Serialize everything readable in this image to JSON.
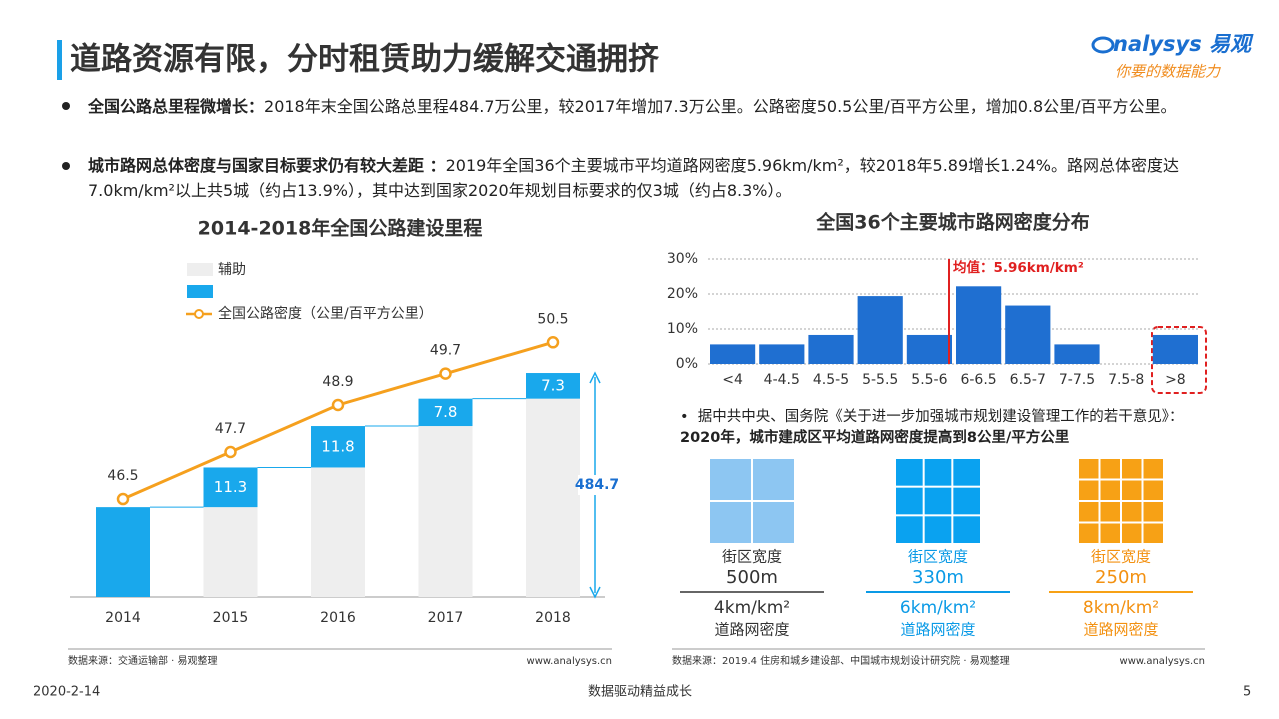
{
  "header": {
    "title": "道路资源有限，分时租赁助力缓解交通拥挤",
    "logo_brand": "nalysys 易观",
    "logo_slogan": "你要的数据能力"
  },
  "bullets": [
    {
      "lead": "全国公路总里程微增长：",
      "text": "2018年末全国公路总里程484.7万公里，较2017年增加7.3万公里。公路密度50.5公里/百平方公里，增加0.8公里/百平方公里。"
    },
    {
      "lead": "城市路网总体密度与国家目标要求仍有较大差距 ：",
      "text": "2019年全国36个主要城市平均道路网密度5.96km/km²，较2018年5.89增长1.24%。路网总体密度达7.0km/km²以上共5城（约占13.9%），其中达到国家2020年规划目标要求的仅3城（约占8.3%）。"
    }
  ],
  "chart_data": [
    {
      "type": "bar",
      "stacked": true,
      "title": "2014-2018年全国公路建设里程",
      "categories": [
        "2014",
        "2015",
        "2016",
        "2017",
        "2018"
      ],
      "series": [
        {
          "name": "辅助",
          "color": "#eeeeee",
          "values": [
            0,
            25.6,
            36.9,
            48.7,
            56.5
          ]
        },
        {
          "color": "#19a8ec",
          "values": [
            25.6,
            11.3,
            11.8,
            7.8,
            7.3
          ],
          "value_labels": [
            null,
            "11.3",
            "11.8",
            "7.8",
            "7.3"
          ]
        },
        {
          "name": "全国公路密度（公里/百平方公里）",
          "type": "line",
          "axis": "y2",
          "color": "#f5a01e",
          "values": [
            46.5,
            47.7,
            48.9,
            49.7,
            50.5
          ]
        }
      ],
      "ylim": [
        0,
        96
      ],
      "y2lim": [
        44,
        52.6
      ],
      "annotation": "484.7",
      "source": "数据来源：交通运输部 · 易观整理",
      "site": "www.analysys.cn"
    },
    {
      "type": "bar",
      "title": "全国36个主要城市路网密度分布",
      "categories": [
        "<4",
        "4-4.5",
        "4.5-5",
        "5-5.5",
        "5.5-6",
        "6-6.5",
        "6.5-7",
        "7-7.5",
        "7.5-8",
        ">8"
      ],
      "values": [
        5.6,
        5.6,
        8.3,
        19.4,
        8.3,
        22.2,
        16.7,
        5.6,
        0,
        8.3
      ],
      "color": "#1f6fd1",
      "ylim": [
        0,
        30
      ],
      "yticks": [
        {
          "value": 0,
          "label": "0%"
        },
        {
          "value": 10,
          "label": "10%"
        },
        {
          "value": 20,
          "label": "20%"
        },
        {
          "value": 30,
          "label": "30%"
        }
      ],
      "grid": true,
      "annotation": "均值：5.96km/km²",
      "source": "数据来源：2019.4 住房和城乡建设部、中国城市规划设计研究院 · 易观整理",
      "site": "www.analysys.cn"
    }
  ],
  "note": {
    "text": "据中共中央、国务院《关于进一步加强城市规划建设管理工作的若干意见》：",
    "emphasis": "2020年，城市建成区平均道路网密度提高到8公里/平方公里"
  },
  "blocks": [
    {
      "label": "街区宽度",
      "size": "500m",
      "density": "4km/km²",
      "density_label": "道路网密度"
    },
    {
      "label": "街区宽度",
      "size": "330m",
      "density": "6km/km²",
      "density_label": "道路网密度"
    },
    {
      "label": "街区宽度",
      "size": "250m",
      "density": "8km/km²",
      "density_label": "道路网密度"
    }
  ],
  "footer": {
    "date": "2020-2-14",
    "slogan": "数据驱动精益成长",
    "page": "5"
  }
}
